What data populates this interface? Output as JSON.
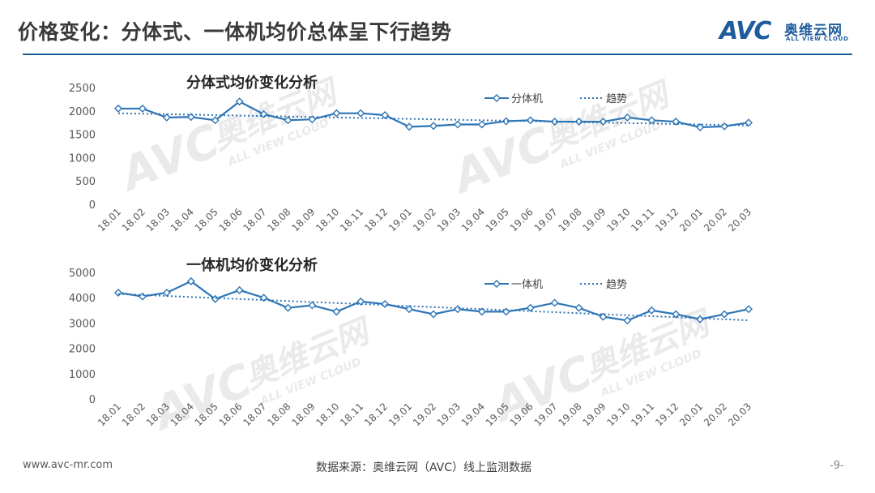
{
  "header": {
    "title": "价格变化：分体式、一体机均价总体呈下行趋势",
    "logo_mark": "AVC",
    "logo_cn": "奥维云网",
    "logo_en": "ALL VIEW CLOUD"
  },
  "watermark": {
    "mark": "AVC",
    "cn": "奥维云网",
    "en": "ALL VIEW CLOUD"
  },
  "footer": {
    "url": "www.avc-mr.com",
    "source": "数据来源：奥维云网（AVC）线上监测数据",
    "page": "-9-"
  },
  "colors": {
    "brand": "#1f5c9e",
    "series_line": "#2e75b6",
    "trend_line": "#2e75b6",
    "axis_text": "#595959",
    "gridline": "#d9d9d9"
  },
  "chart_data": [
    {
      "type": "line",
      "title": "分体式均价变化分析",
      "categories": [
        "18.01",
        "18.02",
        "18.03",
        "18.04",
        "18.05",
        "18.06",
        "18.07",
        "18.08",
        "18.09",
        "18.10",
        "18.11",
        "18.12",
        "19.01",
        "19.02",
        "19.03",
        "19.04",
        "19.05",
        "19.06",
        "19.07",
        "19.08",
        "19.09",
        "19.10",
        "19.11",
        "19.12",
        "20.01",
        "20.02",
        "20.03"
      ],
      "series": [
        {
          "name": "分体机",
          "style": "solid-diamond",
          "values": [
            2050,
            2050,
            1860,
            1870,
            1800,
            2200,
            1930,
            1800,
            1820,
            1950,
            1950,
            1910,
            1660,
            1680,
            1710,
            1710,
            1780,
            1800,
            1770,
            1770,
            1770,
            1860,
            1800,
            1770,
            1650,
            1670,
            1750
          ]
        },
        {
          "name": "趋势",
          "style": "dotted",
          "values": [
            1950,
            1940,
            1930,
            1920,
            1910,
            1900,
            1890,
            1880,
            1870,
            1860,
            1850,
            1840,
            1830,
            1820,
            1810,
            1800,
            1790,
            1780,
            1770,
            1760,
            1750,
            1740,
            1730,
            1720,
            1710,
            1700,
            1690
          ]
        }
      ],
      "yticks": [
        0,
        500,
        1000,
        1500,
        2000,
        2500
      ],
      "ylim": [
        0,
        2500
      ],
      "xlabel": "",
      "ylabel": "",
      "grid": false,
      "legend": "top-right"
    },
    {
      "type": "line",
      "title": "一体机均价变化分析",
      "categories": [
        "18.01",
        "18.02",
        "18.03",
        "18.04",
        "18.05",
        "18.06",
        "18.07",
        "18.08",
        "18.09",
        "18.10",
        "18.11",
        "18.12",
        "19.01",
        "19.02",
        "19.03",
        "19.04",
        "19.05",
        "19.06",
        "19.07",
        "19.08",
        "19.09",
        "19.10",
        "19.11",
        "19.12",
        "20.01",
        "20.02",
        "20.03"
      ],
      "series": [
        {
          "name": "一体机",
          "style": "solid-diamond",
          "values": [
            4200,
            4050,
            4200,
            4650,
            3950,
            4300,
            4000,
            3600,
            3700,
            3450,
            3850,
            3750,
            3550,
            3350,
            3550,
            3450,
            3450,
            3600,
            3800,
            3600,
            3250,
            3100,
            3500,
            3350,
            3150,
            3350,
            3550
          ]
        },
        {
          "name": "趋势",
          "style": "dotted",
          "values": [
            4150,
            4110,
            4070,
            4030,
            3990,
            3950,
            3910,
            3870,
            3830,
            3790,
            3750,
            3710,
            3670,
            3630,
            3590,
            3550,
            3510,
            3470,
            3430,
            3390,
            3350,
            3310,
            3270,
            3230,
            3190,
            3150,
            3110
          ]
        }
      ],
      "yticks": [
        0,
        1000,
        2000,
        3000,
        4000,
        5000
      ],
      "ylim": [
        0,
        5000
      ],
      "xlabel": "",
      "ylabel": "",
      "grid": false,
      "legend": "top-right"
    }
  ]
}
